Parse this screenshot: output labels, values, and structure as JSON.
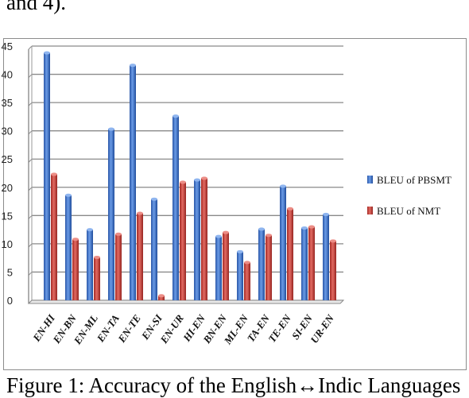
{
  "top_caption": "and 4).",
  "bottom_caption": "Figure 1: Accuracy of the English↔Indic Languages",
  "colors": {
    "pbsmt": "#3a6fc7",
    "nmt": "#c33a33"
  },
  "chart_data": {
    "type": "bar",
    "title": "",
    "xlabel": "",
    "ylabel": "",
    "ylim": [
      0,
      45
    ],
    "yticks": [
      0,
      5,
      10,
      15,
      20,
      25,
      30,
      35,
      40,
      45
    ],
    "grid": true,
    "legend_position": "right",
    "categories": [
      "EN-HI",
      "EN-BN",
      "EN-ML",
      "EN-TA",
      "EN-TE",
      "EN-SI",
      "EN-UR",
      "HI-EN",
      "BN-EN",
      "ML-EN",
      "TA-EN",
      "TE-EN",
      "SI-EN",
      "UR-EN"
    ],
    "series": [
      {
        "name": "BLEU of PBSMT",
        "values": [
          43.8,
          18.6,
          12.5,
          30.3,
          41.6,
          17.9,
          32.6,
          21.3,
          11.3,
          8.6,
          12.6,
          20.2,
          12.8,
          15.2
        ]
      },
      {
        "name": "BLEU of NMT",
        "values": [
          22.3,
          10.8,
          7.6,
          11.7,
          15.4,
          0.8,
          20.9,
          21.6,
          12.0,
          6.7,
          11.5,
          16.2,
          13.0,
          10.5
        ]
      }
    ]
  }
}
